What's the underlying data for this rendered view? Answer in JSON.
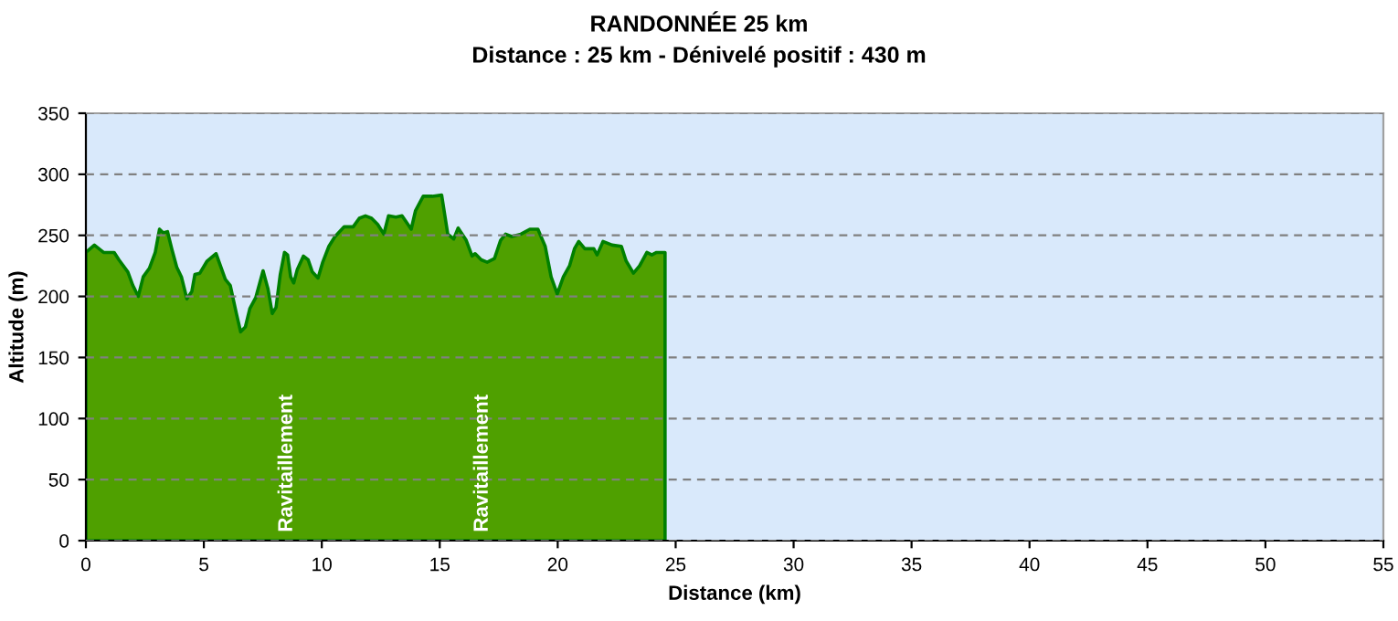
{
  "chart_data": {
    "type": "area",
    "title": "RANDONNÉE 25 km",
    "subtitle": "Distance : 25 km - Dénivelé positif : 430 m",
    "xlabel": "Distance (km)",
    "ylabel": "Altitude (m)",
    "x": [
      0,
      0.36,
      0.75,
      1.2,
      1.4,
      1.78,
      1.99,
      2.22,
      2.43,
      2.69,
      2.94,
      3.12,
      3.28,
      3.46,
      3.64,
      3.85,
      4.05,
      4.28,
      4.49,
      4.62,
      4.83,
      5.14,
      5.52,
      5.91,
      6.12,
      6.38,
      6.56,
      6.76,
      6.95,
      7.2,
      7.51,
      7.72,
      7.9,
      8.06,
      8.24,
      8.42,
      8.55,
      8.68,
      8.81,
      8.96,
      9.22,
      9.42,
      9.6,
      9.84,
      10.04,
      10.3,
      10.56,
      10.95,
      11.33,
      11.59,
      11.85,
      12.11,
      12.37,
      12.63,
      12.83,
      13.14,
      13.4,
      13.79,
      13.97,
      14.3,
      14.69,
      15.08,
      15.34,
      15.59,
      15.78,
      16.12,
      16.37,
      16.5,
      16.76,
      17.01,
      17.32,
      17.58,
      17.79,
      18.05,
      18.44,
      18.82,
      19.16,
      19.47,
      19.72,
      19.98,
      20.24,
      20.5,
      20.71,
      20.89,
      21.15,
      21.53,
      21.67,
      21.92,
      22.31,
      22.7,
      22.9,
      23.21,
      23.47,
      23.78,
      23.99,
      24.19,
      24.55
    ],
    "series": [
      {
        "color": "#008000",
        "values": [
          236,
          242,
          236,
          236,
          230,
          220,
          209,
          200,
          216,
          223,
          236,
          255,
          252,
          253,
          239,
          224,
          216,
          198,
          204,
          218,
          219,
          229,
          235,
          214,
          209,
          186,
          171,
          175,
          190,
          199,
          221,
          206,
          186,
          191,
          218,
          236,
          234,
          216,
          211,
          222,
          233,
          230,
          220,
          215,
          228,
          241,
          249,
          257,
          257,
          264,
          266,
          264,
          259,
          251,
          266,
          265,
          266,
          255,
          270,
          282,
          282,
          283,
          251,
          247,
          256,
          246,
          233,
          235,
          230,
          228,
          231,
          246,
          251,
          249,
          251,
          255,
          255,
          241,
          216,
          202,
          216,
          225,
          239,
          245,
          239,
          239,
          234,
          245,
          242,
          241,
          229,
          219,
          225,
          236,
          234,
          236,
          236
        ]
      }
    ],
    "xlim": [
      0,
      55
    ],
    "ylim": [
      0,
      350
    ],
    "xticks": [
      0,
      5,
      10,
      15,
      20,
      25,
      30,
      35,
      40,
      45,
      50,
      55
    ],
    "yticks": [
      0,
      50,
      100,
      150,
      200,
      250,
      300,
      350
    ],
    "grid": "y",
    "annotations": [
      "Ravitaillement",
      "Ravitaillement"
    ]
  }
}
